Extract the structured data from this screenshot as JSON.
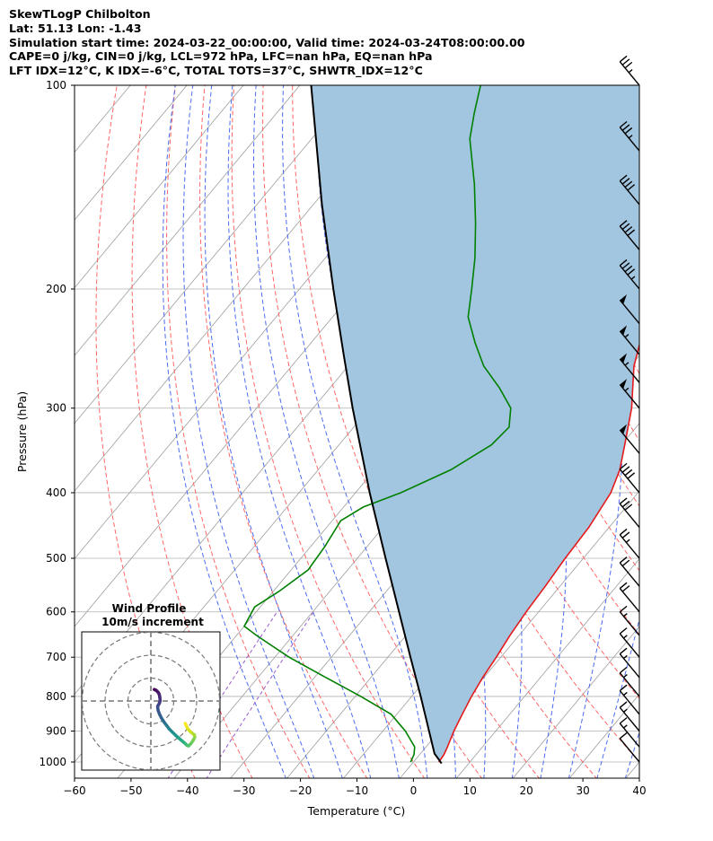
{
  "header": {
    "lines": [
      "SkewTLogP Chilbolton",
      "Lat: 51.13   Lon: -1.43",
      "Simulation start time: 2024-03-22_00:00:00, Valid time: 2024-03-24T08:00:00.00",
      "CAPE=0 j/kg, CIN=0 j/kg, LCL=972 hPa, LFC=nan hPa, EQ=nan hPa",
      "LFT IDX=12°C, K IDX=-6°C, TOTAL TOTS=37°C, SHWTR_IDX=12°C"
    ]
  },
  "chart_data": [
    {
      "type": "line",
      "subtype": "skew-t log-p",
      "xlabel": "Temperature (°C)",
      "ylabel": "Pressure (hPa)",
      "xlim": [
        -60,
        40
      ],
      "ylim": [
        1050,
        100
      ],
      "yscale": "log",
      "xticks": [
        -60,
        -50,
        -40,
        -30,
        -20,
        -10,
        0,
        10,
        20,
        30,
        40
      ],
      "xtick_labels": [
        "−60",
        "−50",
        "−40",
        "−30",
        "−20",
        "−10",
        "0",
        "10",
        "20",
        "30",
        "40"
      ],
      "yticks": [
        1000,
        900,
        800,
        700,
        600,
        500,
        400,
        300,
        200,
        100
      ],
      "ytick_labels": [
        "1000",
        "900",
        "800",
        "700",
        "600",
        "500",
        "400",
        "300",
        "200",
        "100"
      ],
      "grid": true,
      "colors": {
        "temperature": "#e41a1c",
        "dewpoint": "#008000",
        "parcel": "#000000",
        "shade": "#a3c6e0",
        "isotherm": "#9e9e9e",
        "dry_adiabat": "#ff6666",
        "moist_adiabat": "#4c6cf0",
        "mixing_ratio": "#9b59d0"
      },
      "series": [
        {
          "key": "temperature",
          "points": [
            [
              1000,
              4.5
            ],
            [
              975,
              4.3
            ],
            [
              950,
              3.8
            ],
            [
              925,
              3.2
            ],
            [
              900,
              2.6
            ],
            [
              850,
              1.6
            ],
            [
              800,
              0.6
            ],
            [
              750,
              -0.2
            ],
            [
              700,
              -0.8
            ],
            [
              650,
              -1.6
            ],
            [
              600,
              -2.2
            ],
            [
              550,
              -2.6
            ],
            [
              500,
              -3.2
            ],
            [
              450,
              -3.6
            ],
            [
              400,
              -4.8
            ],
            [
              370,
              -6.6
            ],
            [
              340,
              -9.4
            ],
            [
              300,
              -13.6
            ],
            [
              280,
              -16.4
            ],
            [
              260,
              -19.4
            ],
            [
              240,
              -21.8
            ],
            [
              220,
              -24.0
            ],
            [
              200,
              -26.6
            ],
            [
              180,
              -30.0
            ],
            [
              160,
              -34.5
            ],
            [
              140,
              -39.5
            ],
            [
              120,
              -45.0
            ],
            [
              110,
              -48.8
            ],
            [
              100,
              -53.0
            ]
          ]
        },
        {
          "key": "dewpoint",
          "points": [
            [
              1000,
              -0.5
            ],
            [
              975,
              -1.0
            ],
            [
              950,
              -2.0
            ],
            [
              900,
              -6.0
            ],
            [
              850,
              -11.0
            ],
            [
              800,
              -19.0
            ],
            [
              750,
              -28.0
            ],
            [
              700,
              -37.5
            ],
            [
              650,
              -46.5
            ],
            [
              630,
              -50.0
            ],
            [
              590,
              -51.0
            ],
            [
              560,
              -49.0
            ],
            [
              520,
              -47.0
            ],
            [
              480,
              -47.5
            ],
            [
              440,
              -48.5
            ],
            [
              420,
              -46.5
            ],
            [
              400,
              -42.0
            ],
            [
              370,
              -36.5
            ],
            [
              340,
              -33.0
            ],
            [
              320,
              -32.5
            ],
            [
              300,
              -35.0
            ],
            [
              280,
              -40.0
            ],
            [
              260,
              -46.0
            ],
            [
              240,
              -51.0
            ],
            [
              220,
              -56.0
            ],
            [
              200,
              -59.5
            ],
            [
              180,
              -63.5
            ],
            [
              160,
              -68.5
            ],
            [
              140,
              -74.5
            ],
            [
              120,
              -82.0
            ],
            [
              110,
              -85.0
            ],
            [
              100,
              -88.0
            ]
          ]
        },
        {
          "key": "parcel",
          "points": [
            [
              1005,
              5.2
            ],
            [
              990,
              4.0
            ],
            [
              972,
              2.5
            ],
            [
              900,
              -1.8
            ],
            [
              850,
              -5.0
            ],
            [
              800,
              -8.4
            ],
            [
              700,
              -16.0
            ],
            [
              600,
              -24.7
            ],
            [
              500,
              -35.0
            ],
            [
              400,
              -47.5
            ],
            [
              300,
              -63.0
            ],
            [
              250,
              -72.5
            ],
            [
              200,
              -84.0
            ],
            [
              150,
              -98.5
            ],
            [
              100,
              -118.0
            ]
          ]
        }
      ],
      "wind_barbs": [
        {
          "p": 100,
          "speed": 35
        },
        {
          "p": 125,
          "speed": 35
        },
        {
          "p": 150,
          "speed": 40
        },
        {
          "p": 175,
          "speed": 40
        },
        {
          "p": 200,
          "speed": 45
        },
        {
          "p": 225,
          "speed": 50
        },
        {
          "p": 250,
          "speed": 55
        },
        {
          "p": 275,
          "speed": 55
        },
        {
          "p": 300,
          "speed": 55
        },
        {
          "p": 350,
          "speed": 50
        },
        {
          "p": 400,
          "speed": 40
        },
        {
          "p": 450,
          "speed": 30
        },
        {
          "p": 500,
          "speed": 25
        },
        {
          "p": 550,
          "speed": 20
        },
        {
          "p": 600,
          "speed": 20
        },
        {
          "p": 650,
          "speed": 15
        },
        {
          "p": 700,
          "speed": 15
        },
        {
          "p": 750,
          "speed": 15
        },
        {
          "p": 800,
          "speed": 15
        },
        {
          "p": 850,
          "speed": 15
        },
        {
          "p": 900,
          "speed": 15
        },
        {
          "p": 950,
          "speed": 15
        },
        {
          "p": 1000,
          "speed": 10
        }
      ]
    },
    {
      "type": "scatter",
      "subtype": "hodograph",
      "title": "Wind Profile",
      "subtitle": "10m/s increment",
      "rings": 3,
      "points": [
        {
          "u": 1.5,
          "v": 5.0,
          "c": "#440154"
        },
        {
          "u": 2.2,
          "v": 4.7,
          "c": "#440154"
        },
        {
          "u": 2.8,
          "v": 4.2,
          "c": "#46085c"
        },
        {
          "u": 3.3,
          "v": 3.6,
          "c": "#471063"
        },
        {
          "u": 3.6,
          "v": 3.0,
          "c": "#481769"
        },
        {
          "u": 3.8,
          "v": 2.3,
          "c": "#481d6f"
        },
        {
          "u": 3.9,
          "v": 1.6,
          "c": "#482374"
        },
        {
          "u": 4.0,
          "v": 0.8,
          "c": "#472a7a"
        },
        {
          "u": 4.0,
          "v": 0.0,
          "c": "#46307e"
        },
        {
          "u": 3.8,
          "v": -0.8,
          "c": "#453781"
        },
        {
          "u": 3.4,
          "v": -1.6,
          "c": "#433e85"
        },
        {
          "u": 3.0,
          "v": -2.2,
          "c": "#414487"
        },
        {
          "u": 3.0,
          "v": -3.0,
          "c": "#3e4a89"
        },
        {
          "u": 3.2,
          "v": -4.2,
          "c": "#3c508b"
        },
        {
          "u": 3.8,
          "v": -5.8,
          "c": "#39568c"
        },
        {
          "u": 4.6,
          "v": -7.4,
          "c": "#355f8d"
        },
        {
          "u": 5.6,
          "v": -9.0,
          "c": "#31678e"
        },
        {
          "u": 6.8,
          "v": -10.6,
          "c": "#2d708e"
        },
        {
          "u": 8.0,
          "v": -12.2,
          "c": "#297b8e"
        },
        {
          "u": 9.4,
          "v": -13.6,
          "c": "#25858e"
        },
        {
          "u": 10.8,
          "v": -15.0,
          "c": "#21918c"
        },
        {
          "u": 12.4,
          "v": -16.4,
          "c": "#1f9a8a"
        },
        {
          "u": 13.8,
          "v": -17.6,
          "c": "#22a785"
        },
        {
          "u": 15.0,
          "v": -18.6,
          "c": "#2ab07f"
        },
        {
          "u": 15.8,
          "v": -19.4,
          "c": "#35b779"
        },
        {
          "u": 16.5,
          "v": -19.6,
          "c": "#44bf70"
        },
        {
          "u": 17.5,
          "v": -18.6,
          "c": "#54c568"
        },
        {
          "u": 18.5,
          "v": -17.2,
          "c": "#67cc5c"
        },
        {
          "u": 19.2,
          "v": -15.8,
          "c": "#7ad151"
        },
        {
          "u": 19.0,
          "v": -14.8,
          "c": "#8fd744"
        },
        {
          "u": 18.0,
          "v": -14.0,
          "c": "#a5db36"
        },
        {
          "u": 17.0,
          "v": -13.2,
          "c": "#bddf26"
        },
        {
          "u": 16.0,
          "v": -12.0,
          "c": "#d2e21b"
        },
        {
          "u": 15.4,
          "v": -10.6,
          "c": "#e5e419"
        },
        {
          "u": 15.0,
          "v": -9.8,
          "c": "#fde725"
        }
      ]
    }
  ]
}
